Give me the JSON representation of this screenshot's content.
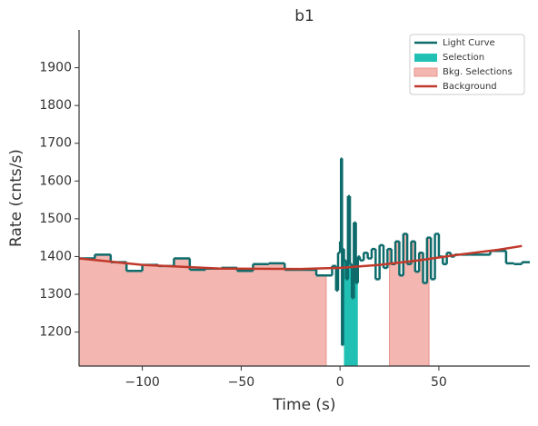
{
  "chart_data": {
    "type": "step",
    "title": "b1",
    "xlabel": "Time (s)",
    "ylabel": "Rate (cnts/s)",
    "xlim": [
      -132,
      96
    ],
    "ylim": [
      1110,
      2000
    ],
    "xticks": [
      {
        "value": -100,
        "label": "−100"
      },
      {
        "value": -50,
        "label": "−50"
      },
      0,
      50
    ],
    "yticks": [
      1200,
      1300,
      1400,
      1500,
      1600,
      1700,
      1800,
      1900
    ],
    "series": [
      {
        "name": "Light Curve",
        "color": "#0e6b6b",
        "bins": [
          -132,
          -124,
          -116,
          -108,
          -100,
          -92,
          -84,
          -76,
          -68,
          -60,
          -52,
          -44,
          -36,
          -28,
          -20,
          -12,
          -4,
          -2,
          -1,
          0,
          0.5,
          1,
          1.5,
          2,
          3,
          4,
          5,
          6,
          7,
          8,
          9,
          10,
          12,
          14,
          16,
          18,
          20,
          22,
          24,
          26,
          28,
          30,
          32,
          34,
          36,
          38,
          40,
          42,
          44,
          46,
          48,
          50,
          52,
          54,
          56,
          58,
          60,
          66,
          76,
          84,
          88,
          92,
          96
        ],
        "values": [
          1395,
          1405,
          1385,
          1362,
          1378,
          1375,
          1395,
          1365,
          1368,
          1370,
          1362,
          1380,
          1382,
          1365,
          1365,
          1350,
          1375,
          1310,
          1410,
          1440,
          1660,
          1165,
          1420,
          1390,
          1340,
          1560,
          1380,
          1290,
          1490,
          1330,
          1400,
          1390,
          1410,
          1395,
          1420,
          1340,
          1430,
          1370,
          1420,
          1380,
          1440,
          1350,
          1460,
          1380,
          1440,
          1360,
          1410,
          1330,
          1450,
          1340,
          1460,
          1400,
          1380,
          1410,
          1400,
          1405,
          1405,
          1405,
          1415,
          1382,
          1380,
          1385
        ]
      }
    ],
    "selections": [
      {
        "name": "Selection",
        "color": "#20c0b4",
        "ranges": [
          [
            2,
            9
          ]
        ]
      },
      {
        "name": "Bkg. Selections",
        "color": "#f4b6b0",
        "ranges": [
          [
            -132,
            -7
          ],
          [
            25,
            45
          ]
        ]
      }
    ],
    "background": {
      "name": "Background",
      "color": "#c0392b",
      "x": [
        -132,
        -100,
        -60,
        -20,
        0,
        20,
        40,
        60,
        80,
        92
      ],
      "values": [
        1395,
        1378,
        1368,
        1367,
        1370,
        1378,
        1390,
        1405,
        1418,
        1428
      ]
    },
    "legend": "upper right"
  }
}
